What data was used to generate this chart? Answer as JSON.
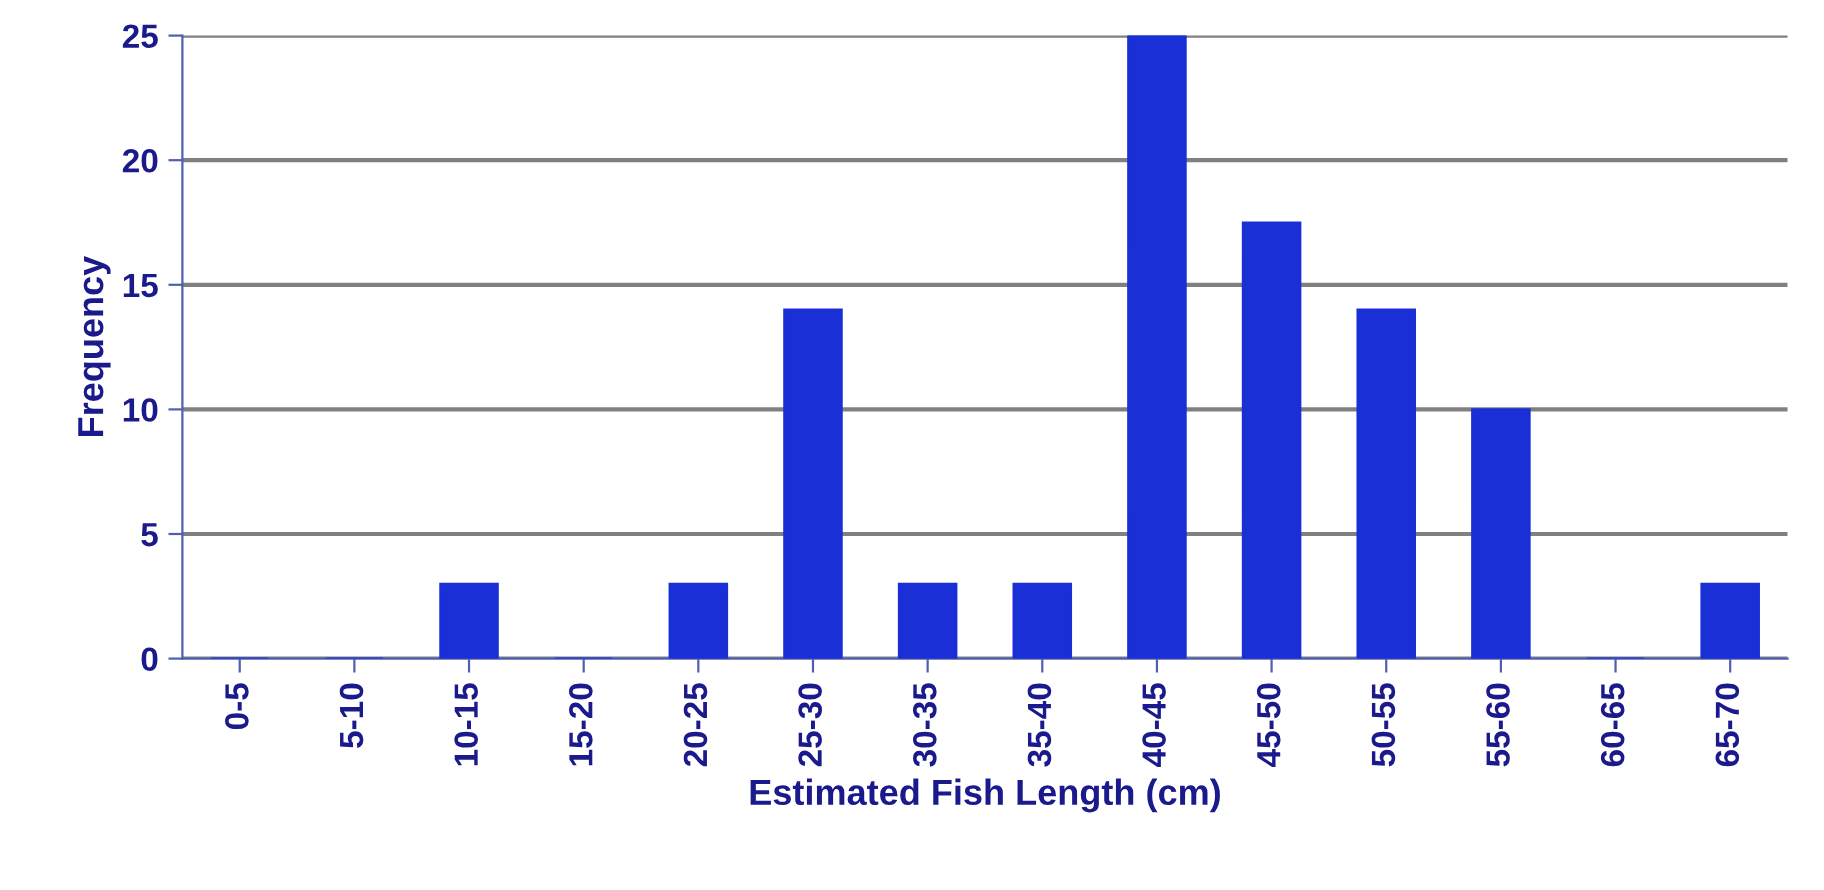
{
  "chart_data": {
    "type": "bar",
    "xlabel": "Estimated Fish Length (cm)",
    "ylabel": "Frequency",
    "categories": [
      "0-5",
      "5-10",
      "10-15",
      "15-20",
      "20-25",
      "25-30",
      "30-35",
      "35-40",
      "40-45",
      "45-50",
      "50-55",
      "55-60",
      "60-65",
      "65-70"
    ],
    "values": [
      0,
      0,
      3,
      0,
      3,
      14,
      3,
      3,
      25,
      17.5,
      14,
      10,
      0,
      3
    ],
    "color": "#1a2fd6",
    "ylim": [
      0,
      25
    ],
    "yticks": [
      0,
      5,
      10,
      15,
      20,
      25
    ],
    "grid": "y",
    "legend": false
  }
}
